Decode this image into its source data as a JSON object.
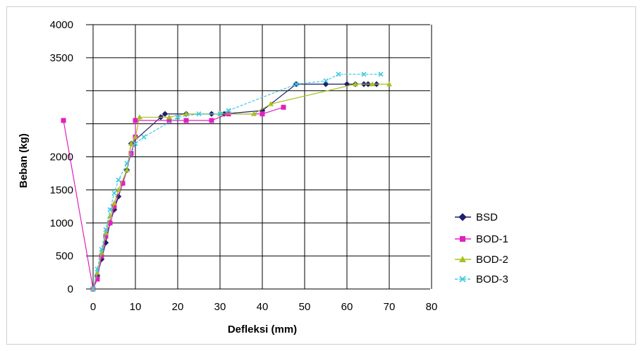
{
  "chart_data": {
    "type": "line",
    "xlabel": "Defleksi (mm)",
    "ylabel": "Beban (kg)",
    "xlim": [
      0,
      80
    ],
    "ylim": [
      0,
      4000
    ],
    "x_ticks": [
      "0",
      "10",
      "20",
      "30",
      "40",
      "50",
      "60",
      "70",
      "80"
    ],
    "y_ticks": [
      "0",
      "500",
      "1000",
      "1500",
      "2000",
      "",
      "",
      "3500",
      "4000"
    ],
    "legend_position": "right",
    "grid": true,
    "colors": {
      "grid": "#000000",
      "frame": "#cfcfcf",
      "BSD": "#1f1f6e",
      "BOD-1": "#e020c0",
      "BOD-2": "#a8c020",
      "BOD-3": "#40c8e0"
    },
    "series": [
      {
        "name": "BSD",
        "marker": "diamond",
        "x": [
          0,
          1,
          2,
          3,
          4,
          5,
          6,
          8,
          9,
          16,
          17,
          22,
          28,
          31,
          40,
          48,
          55,
          60,
          62,
          64,
          65,
          67
        ],
        "y": [
          0,
          200,
          450,
          700,
          1000,
          1200,
          1400,
          1800,
          2200,
          2600,
          2650,
          2650,
          2650,
          2650,
          2700,
          3100,
          3100,
          3100,
          3100,
          3100,
          3100,
          3100
        ]
      },
      {
        "name": "BOD-1",
        "marker": "square",
        "x": [
          -7,
          0,
          1,
          2,
          3,
          4,
          5,
          7,
          9,
          10,
          10,
          18,
          22,
          28,
          32,
          40,
          45
        ],
        "y": [
          2550,
          0,
          150,
          500,
          800,
          1000,
          1250,
          1600,
          2050,
          2300,
          2550,
          2550,
          2550,
          2550,
          2650,
          2650,
          2750
        ]
      },
      {
        "name": "BOD-2",
        "marker": "triangle",
        "x": [
          0,
          1,
          2,
          3,
          4,
          5,
          6,
          8,
          9,
          10,
          11,
          18,
          22,
          30,
          38,
          42,
          62,
          66,
          70
        ],
        "y": [
          0,
          250,
          550,
          850,
          1100,
          1300,
          1500,
          1800,
          2200,
          2300,
          2600,
          2600,
          2650,
          2650,
          2650,
          2800,
          3100,
          3100,
          3100
        ]
      },
      {
        "name": "BOD-3",
        "marker": "x",
        "x": [
          0,
          1,
          2,
          3,
          4,
          5,
          6,
          8,
          10,
          12,
          20,
          25,
          30,
          32,
          48,
          55,
          58,
          64,
          68
        ],
        "y": [
          0,
          300,
          600,
          900,
          1200,
          1450,
          1650,
          1900,
          2200,
          2300,
          2600,
          2650,
          2650,
          2700,
          3100,
          3150,
          3250,
          3250,
          3250
        ]
      }
    ]
  },
  "legend": {
    "items": [
      {
        "label": "BSD"
      },
      {
        "label": "BOD-1"
      },
      {
        "label": "BOD-2"
      },
      {
        "label": "BOD-3"
      }
    ]
  }
}
